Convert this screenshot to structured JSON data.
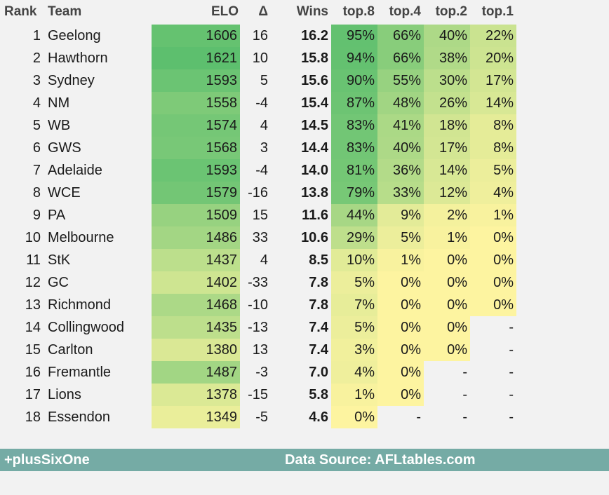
{
  "headers": {
    "rank": "Rank",
    "team": "Team",
    "elo": "ELO",
    "delta": "Δ",
    "wins": "Wins",
    "top8": "top.8",
    "top4": "top.4",
    "top2": "top.2",
    "top1": "top.1"
  },
  "footer": {
    "brand": "+plusSixOne",
    "source": "Data Source: AFLtables.com"
  },
  "colors": {
    "background": "#f2f2f2",
    "footer": "#75aba5",
    "scale_low": "#fdf4a0",
    "scale_high": "#5dbf6e"
  },
  "chart_data": {
    "type": "table",
    "columns": [
      "Rank",
      "Team",
      "ELO",
      "Δ",
      "Wins",
      "top.8",
      "top.4",
      "top.2",
      "top.1"
    ],
    "rows": [
      {
        "rank": "1",
        "team": "Geelong",
        "elo": "1606",
        "delta": "16",
        "wins": "16.2",
        "top8": "95%",
        "top4": "66%",
        "top2": "40%",
        "top1": "22%"
      },
      {
        "rank": "2",
        "team": "Hawthorn",
        "elo": "1621",
        "delta": "10",
        "wins": "15.8",
        "top8": "94%",
        "top4": "66%",
        "top2": "38%",
        "top1": "20%"
      },
      {
        "rank": "3",
        "team": "Sydney",
        "elo": "1593",
        "delta": "5",
        "wins": "15.6",
        "top8": "90%",
        "top4": "55%",
        "top2": "30%",
        "top1": "17%"
      },
      {
        "rank": "4",
        "team": "NM",
        "elo": "1558",
        "delta": "-4",
        "wins": "15.4",
        "top8": "87%",
        "top4": "48%",
        "top2": "26%",
        "top1": "14%"
      },
      {
        "rank": "5",
        "team": "WB",
        "elo": "1574",
        "delta": "4",
        "wins": "14.5",
        "top8": "83%",
        "top4": "41%",
        "top2": "18%",
        "top1": "8%"
      },
      {
        "rank": "6",
        "team": "GWS",
        "elo": "1568",
        "delta": "3",
        "wins": "14.4",
        "top8": "83%",
        "top4": "40%",
        "top2": "17%",
        "top1": "8%"
      },
      {
        "rank": "7",
        "team": "Adelaide",
        "elo": "1593",
        "delta": "-4",
        "wins": "14.0",
        "top8": "81%",
        "top4": "36%",
        "top2": "14%",
        "top1": "5%"
      },
      {
        "rank": "8",
        "team": "WCE",
        "elo": "1579",
        "delta": "-16",
        "wins": "13.8",
        "top8": "79%",
        "top4": "33%",
        "top2": "12%",
        "top1": "4%"
      },
      {
        "rank": "9",
        "team": "PA",
        "elo": "1509",
        "delta": "15",
        "wins": "11.6",
        "top8": "44%",
        "top4": "9%",
        "top2": "2%",
        "top1": "1%"
      },
      {
        "rank": "10",
        "team": "Melbourne",
        "elo": "1486",
        "delta": "33",
        "wins": "10.6",
        "top8": "29%",
        "top4": "5%",
        "top2": "1%",
        "top1": "0%"
      },
      {
        "rank": "11",
        "team": "StK",
        "elo": "1437",
        "delta": "4",
        "wins": "8.5",
        "top8": "10%",
        "top4": "1%",
        "top2": "0%",
        "top1": "0%"
      },
      {
        "rank": "12",
        "team": "GC",
        "elo": "1402",
        "delta": "-33",
        "wins": "7.8",
        "top8": "5%",
        "top4": "0%",
        "top2": "0%",
        "top1": "0%"
      },
      {
        "rank": "13",
        "team": "Richmond",
        "elo": "1468",
        "delta": "-10",
        "wins": "7.8",
        "top8": "7%",
        "top4": "0%",
        "top2": "0%",
        "top1": "0%"
      },
      {
        "rank": "14",
        "team": "Collingwood",
        "elo": "1435",
        "delta": "-13",
        "wins": "7.4",
        "top8": "5%",
        "top4": "0%",
        "top2": "0%",
        "top1": "-"
      },
      {
        "rank": "15",
        "team": "Carlton",
        "elo": "1380",
        "delta": "13",
        "wins": "7.4",
        "top8": "3%",
        "top4": "0%",
        "top2": "0%",
        "top1": "-"
      },
      {
        "rank": "16",
        "team": "Fremantle",
        "elo": "1487",
        "delta": "-3",
        "wins": "7.0",
        "top8": "4%",
        "top4": "0%",
        "top2": "-",
        "top1": "-"
      },
      {
        "rank": "17",
        "team": "Lions",
        "elo": "1378",
        "delta": "-15",
        "wins": "5.8",
        "top8": "1%",
        "top4": "0%",
        "top2": "-",
        "top1": "-"
      },
      {
        "rank": "18",
        "team": "Essendon",
        "elo": "1349",
        "delta": "-5",
        "wins": "4.6",
        "top8": "0%",
        "top4": "-",
        "top2": "-",
        "top1": "-"
      }
    ]
  }
}
